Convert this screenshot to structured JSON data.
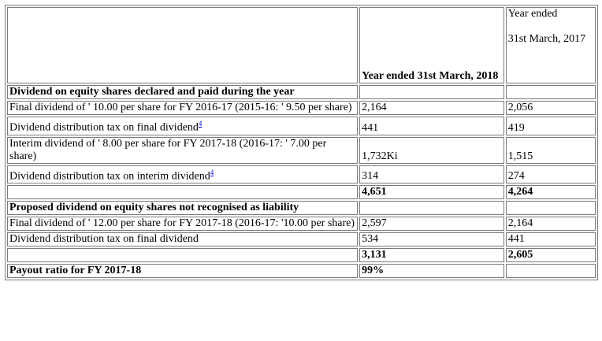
{
  "header": {
    "col2": "Year ended 31st March, 2018",
    "col3_line1": "Year ended",
    "col3_line2": "31st March, 2017"
  },
  "rows": [
    {
      "label": "Dividend on equity shares declared and paid during the year",
      "v1": "",
      "v2": ""
    },
    {
      "label": "Final dividend of ' 10.00 per share for FY 2016-17 (2015-16: ' 9.50 per share)",
      "v1": "2,164",
      "v2": "2,056"
    },
    {
      "label": "Dividend distribution tax on final dividend",
      "sup": "4",
      "v1": "441",
      "v2": "419"
    },
    {
      "label": "Interim dividend of ' 8.00 per share for FY 2017-18 (2016-17: ' 7.00 per share)",
      "v1": "1,732Ki",
      "v2": "1,515"
    },
    {
      "label": "Dividend distribution tax on interim dividend",
      "sup": "4",
      "v1": "314",
      "v2": "274"
    },
    {
      "label": "",
      "v1": "4,651",
      "v2": "4,264"
    },
    {
      "label": "Proposed dividend on equity shares not recognised as liability",
      "v1": "",
      "v2": ""
    },
    {
      "label": "Final dividend of ' 12.00 per share for FY 2017-18 (2016-17: '10.00 per share)",
      "v1": "2,597",
      "v2": "2,164"
    },
    {
      "label": "Dividend distribution tax on final dividend",
      "v1": "534",
      "v2": "441"
    },
    {
      "label": "",
      "v1": "3,131",
      "v2": "2,605"
    },
    {
      "label": "Payout ratio for FY 2017-18",
      "v1": "99%",
      "v2": ""
    }
  ]
}
